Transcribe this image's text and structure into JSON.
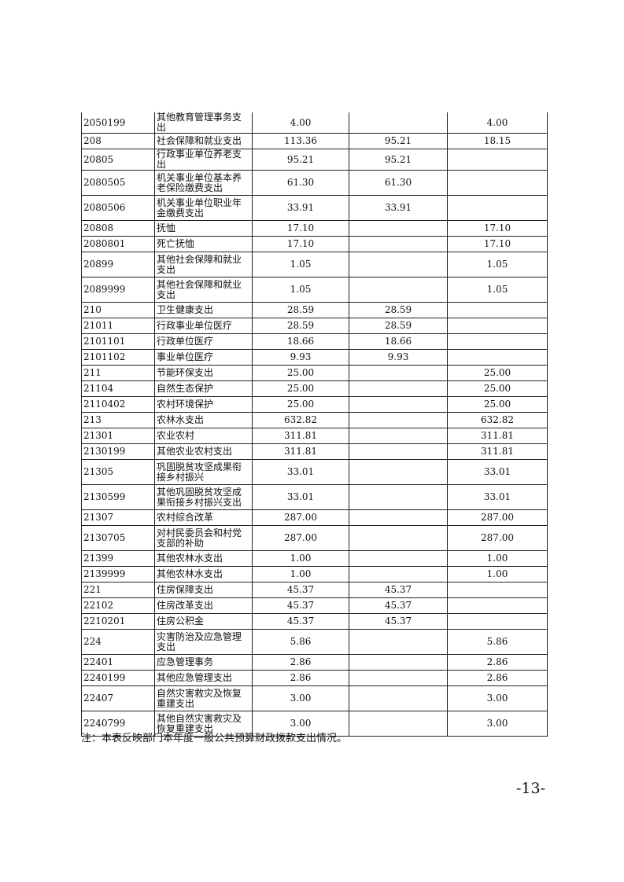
{
  "table": {
    "rows": [
      [
        "2050199",
        "其他教育管理事务支出",
        "4.00",
        "",
        "4.00"
      ],
      [
        "208",
        "社会保障和就业支出",
        "113.36",
        "95.21",
        "18.15"
      ],
      [
        "20805",
        "行政事业单位养老支出",
        "95.21",
        "95.21",
        ""
      ],
      [
        "2080505",
        "机关事业单位基本养老保险缴费支出",
        "61.30",
        "61.30",
        ""
      ],
      [
        "2080506",
        "机关事业单位职业年金缴费支出",
        "33.91",
        "33.91",
        ""
      ],
      [
        "20808",
        "抚恤",
        "17.10",
        "",
        "17.10"
      ],
      [
        "2080801",
        "死亡抚恤",
        "17.10",
        "",
        "17.10"
      ],
      [
        "20899",
        "其他社会保障和就业支出",
        "1.05",
        "",
        "1.05"
      ],
      [
        "2089999",
        "其他社会保障和就业支出",
        "1.05",
        "",
        "1.05"
      ],
      [
        "210",
        "卫生健康支出",
        "28.59",
        "28.59",
        ""
      ],
      [
        "21011",
        "行政事业单位医疗",
        "28.59",
        "28.59",
        ""
      ],
      [
        "2101101",
        "行政单位医疗",
        "18.66",
        "18.66",
        ""
      ],
      [
        "2101102",
        "事业单位医疗",
        "9.93",
        "9.93",
        ""
      ],
      [
        "211",
        "节能环保支出",
        "25.00",
        "",
        "25.00"
      ],
      [
        "21104",
        "自然生态保护",
        "25.00",
        "",
        "25.00"
      ],
      [
        "2110402",
        "农村环境保护",
        "25.00",
        "",
        "25.00"
      ],
      [
        "213",
        "农林水支出",
        "632.82",
        "",
        "632.82"
      ],
      [
        "21301",
        "农业农村",
        "311.81",
        "",
        "311.81"
      ],
      [
        "2130199",
        "其他农业农村支出",
        "311.81",
        "",
        "311.81"
      ],
      [
        "21305",
        "巩固脱贫攻坚成果衔接乡村振兴",
        "33.01",
        "",
        "33.01"
      ],
      [
        "2130599",
        "其他巩固脱贫攻坚成果衔接乡村振兴支出",
        "33.01",
        "",
        "33.01"
      ],
      [
        "21307",
        "农村综合改革",
        "287.00",
        "",
        "287.00"
      ],
      [
        "2130705",
        "对村民委员会和村党支部的补助",
        "287.00",
        "",
        "287.00"
      ],
      [
        "21399",
        "其他农林水支出",
        "1.00",
        "",
        "1.00"
      ],
      [
        "2139999",
        "其他农林水支出",
        "1.00",
        "",
        "1.00"
      ],
      [
        "221",
        "住房保障支出",
        "45.37",
        "45.37",
        ""
      ],
      [
        "22102",
        "住房改革支出",
        "45.37",
        "45.37",
        ""
      ],
      [
        "2210201",
        "住房公积金",
        "45.37",
        "45.37",
        ""
      ],
      [
        "224",
        "灾害防治及应急管理支出",
        "5.86",
        "",
        "5.86"
      ],
      [
        "22401",
        "应急管理事务",
        "2.86",
        "",
        "2.86"
      ],
      [
        "2240199",
        "其他应急管理支出",
        "2.86",
        "",
        "2.86"
      ],
      [
        "22407",
        "自然灾害救灾及恢复重建支出",
        "3.00",
        "",
        "3.00"
      ],
      [
        "2240799",
        "其他自然灾害救灾及恢复重建支出",
        "3.00",
        "",
        "3.00"
      ]
    ]
  },
  "note": "注：本表反映部门本年度一般公共预算财政拨款支出情况。",
  "page_number": "-13-"
}
